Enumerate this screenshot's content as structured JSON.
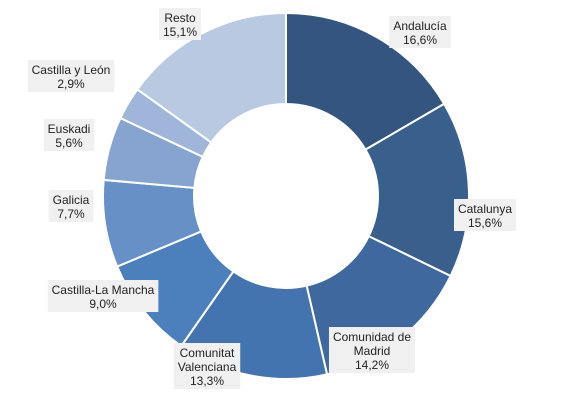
{
  "chart_data": {
    "type": "pie",
    "variant": "donut",
    "start_angle_deg": 0,
    "direction": "clockwise",
    "slices": [
      {
        "label": "Andalucía",
        "lines": [
          "Andalucía"
        ],
        "value": 16.6,
        "display": "16,6%",
        "color": "#34557f"
      },
      {
        "label": "Catalunya",
        "lines": [
          "Catalunya"
        ],
        "value": 15.6,
        "display": "15,6%",
        "color": "#395f8c"
      },
      {
        "label": "Comunidad de Madrid",
        "lines": [
          "Comunidad de",
          "Madrid"
        ],
        "value": 14.2,
        "display": "14,2%",
        "color": "#3f699e"
      },
      {
        "label": "Comunitat Valenciana",
        "lines": [
          "Comunitat",
          "Valenciana"
        ],
        "value": 13.3,
        "display": "13,3%",
        "color": "#4474af"
      },
      {
        "label": "Castilla-La Mancha",
        "lines": [
          "Castilla-La Mancha"
        ],
        "value": 9.0,
        "display": "9,0%",
        "color": "#4c80bd"
      },
      {
        "label": "Galicia",
        "lines": [
          "Galicia"
        ],
        "value": 7.7,
        "display": "7,7%",
        "color": "#6690c6"
      },
      {
        "label": "Euskadi",
        "lines": [
          "Euskadi"
        ],
        "value": 5.6,
        "display": "5,6%",
        "color": "#86a4cf"
      },
      {
        "label": "Castilla y León",
        "lines": [
          "Castilla y León"
        ],
        "value": 2.9,
        "display": "2,9%",
        "color": "#9fb5d9"
      },
      {
        "label": "Resto",
        "lines": [
          "Resto"
        ],
        "value": 15.1,
        "display": "15,1%",
        "color": "#b9c9e2"
      }
    ]
  }
}
